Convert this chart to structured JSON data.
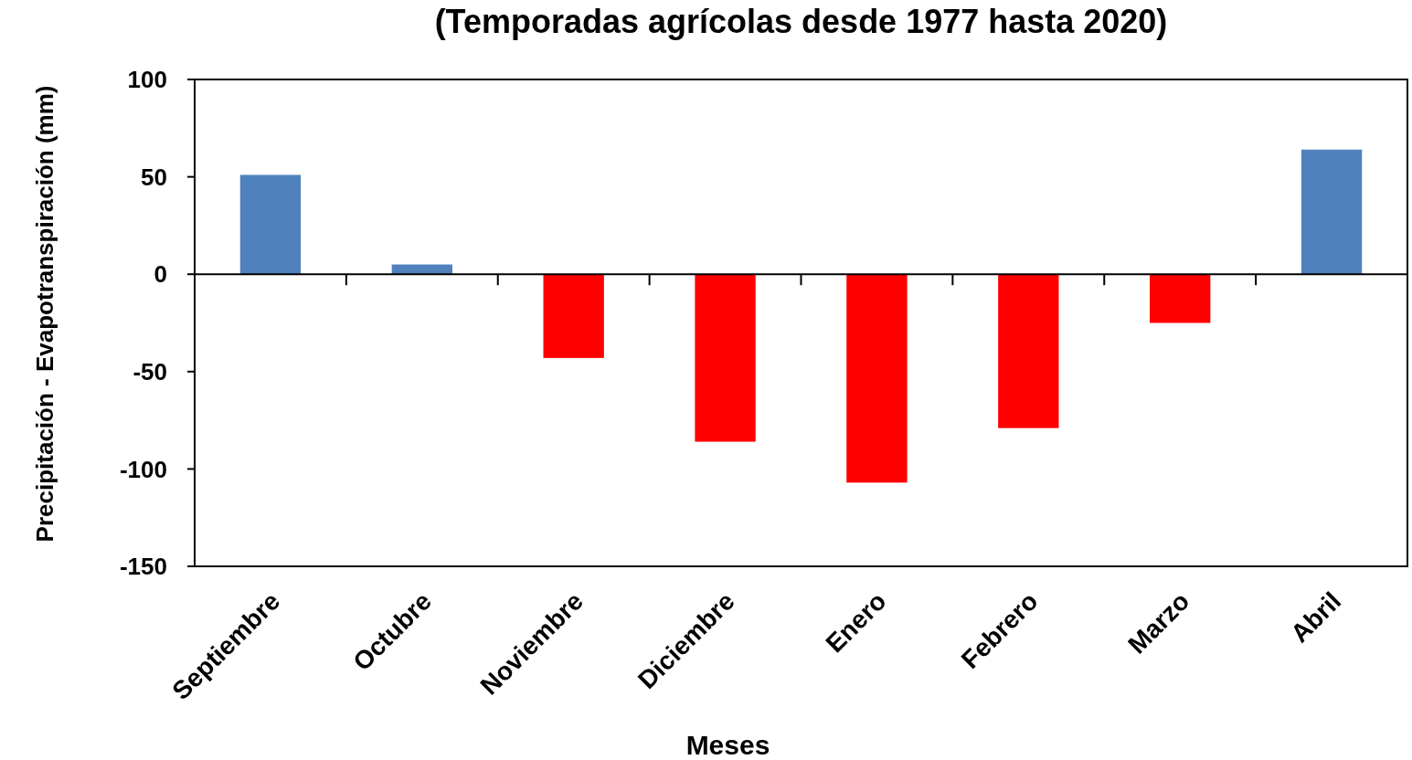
{
  "chart_data": {
    "type": "bar",
    "title": "(Temporadas agrícolas desde 1977 hasta 2020)",
    "xlabel": "Meses",
    "ylabel": "Precipitación - Evapotranspiración (mm)",
    "categories": [
      "Septiembre",
      "Octubre",
      "Noviembre",
      "Diciembre",
      "Enero",
      "Febrero",
      "Marzo",
      "Abril"
    ],
    "values": [
      51,
      5,
      -43,
      -86,
      -107,
      -79,
      -25,
      64
    ],
    "colors": [
      "#4f81bd",
      "#4f81bd",
      "#ff0000",
      "#ff0000",
      "#ff0000",
      "#ff0000",
      "#ff0000",
      "#4f81bd"
    ],
    "ylim": [
      -150,
      100
    ],
    "yticks": [
      -150,
      -100,
      -50,
      0,
      50,
      100
    ]
  }
}
